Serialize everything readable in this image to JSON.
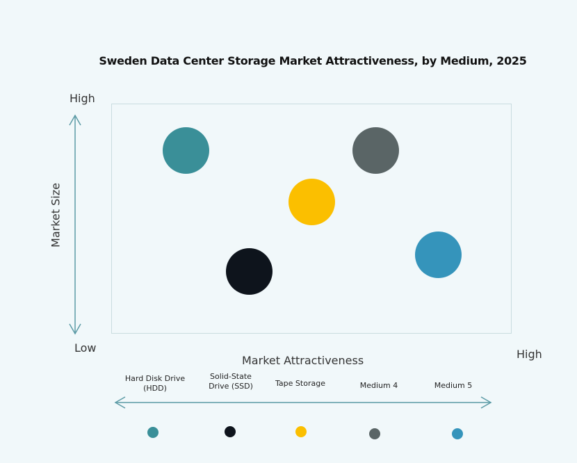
{
  "chart_data": {
    "type": "bubble",
    "title": "Sweden Data Center Storage Market Attractiveness,  by Medium, 2025",
    "xlabel": "Market Attractiveness",
    "ylabel": "Market Size",
    "y_low": "Low",
    "y_high": "High",
    "x_high": "High",
    "series": [
      {
        "name": "Hard Disk Drive (HDD)",
        "line1": "Hard Disk Drive",
        "line2": "(HDD)",
        "color": "#3a8f98"
      },
      {
        "name": "Solid-State Drive (SSD)",
        "line1": "Solid-State",
        "line2": "Drive (SSD)",
        "color": "#0e141c"
      },
      {
        "name": "Tape Storage",
        "line1": "Tape Storage",
        "line2": "",
        "color": "#fbbf00"
      },
      {
        "name": "Medium 4",
        "line1": "Medium 4",
        "line2": "",
        "color": "#5a6566"
      },
      {
        "name": "Medium 5",
        "line1": "Medium 5",
        "line2": "",
        "color": "#3594bb"
      }
    ]
  }
}
